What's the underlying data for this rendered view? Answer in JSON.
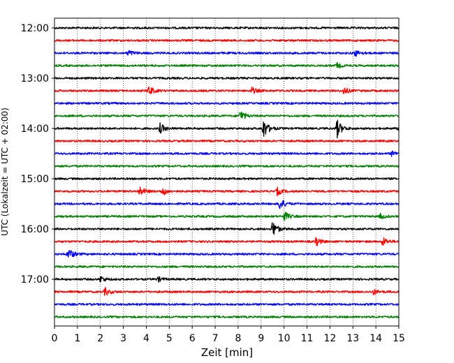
{
  "chart_data": {
    "type": "line",
    "title": "",
    "xlabel": "Zeit  [min]",
    "ylabel": "UTC (Lokalzeit = UTC + 02:00)",
    "xlim": [
      0,
      15
    ],
    "x_ticks": [
      "0",
      "1",
      "2",
      "3",
      "4",
      "5",
      "6",
      "7",
      "8",
      "9",
      "10",
      "11",
      "12",
      "13",
      "14",
      "15"
    ],
    "y_ticks": [
      "12:00",
      "13:00",
      "14:00",
      "15:00",
      "16:00",
      "17:00"
    ],
    "grid": "vertical dotted lines at each minute",
    "row_interval_minutes": 15,
    "series_colors": [
      "#000000",
      "#ff0000",
      "#0000ff",
      "#007f00"
    ],
    "rows": [
      {
        "start": "12:00",
        "color": "#000000",
        "events": []
      },
      {
        "start": "12:15",
        "color": "#ff0000",
        "events": []
      },
      {
        "start": "12:30",
        "color": "#0000ff",
        "events": [
          {
            "t": 3.2,
            "amp": 0.5
          },
          {
            "t": 13.1,
            "amp": 0.5
          }
        ]
      },
      {
        "start": "12:45",
        "color": "#007f00",
        "events": [
          {
            "t": 12.3,
            "amp": 0.4
          }
        ]
      },
      {
        "start": "13:00",
        "color": "#000000",
        "events": []
      },
      {
        "start": "13:15",
        "color": "#ff0000",
        "events": [
          {
            "t": 4.1,
            "amp": 0.8
          },
          {
            "t": 8.6,
            "amp": 0.5
          },
          {
            "t": 12.6,
            "amp": 0.6
          }
        ]
      },
      {
        "start": "13:30",
        "color": "#0000ff",
        "events": []
      },
      {
        "start": "13:45",
        "color": "#007f00",
        "events": [
          {
            "t": 8.1,
            "amp": 0.9
          }
        ]
      },
      {
        "start": "14:00",
        "color": "#000000",
        "events": [
          {
            "t": 4.6,
            "amp": 0.8
          },
          {
            "t": 9.1,
            "amp": 1.6
          },
          {
            "t": 12.3,
            "amp": 1.5
          },
          {
            "t": 15.0,
            "amp": 0.4
          }
        ]
      },
      {
        "start": "14:15",
        "color": "#ff0000",
        "events": []
      },
      {
        "start": "14:30",
        "color": "#0000ff",
        "events": [
          {
            "t": 14.7,
            "amp": 0.4
          }
        ]
      },
      {
        "start": "14:45",
        "color": "#007f00",
        "events": []
      },
      {
        "start": "15:00",
        "color": "#000000",
        "events": []
      },
      {
        "start": "15:15",
        "color": "#ff0000",
        "events": [
          {
            "t": 3.7,
            "amp": 0.8
          },
          {
            "t": 4.7,
            "amp": 0.7
          },
          {
            "t": 9.7,
            "amp": 0.6
          }
        ]
      },
      {
        "start": "15:30",
        "color": "#0000ff",
        "events": [
          {
            "t": 9.8,
            "amp": 1.0
          }
        ]
      },
      {
        "start": "15:45",
        "color": "#007f00",
        "events": [
          {
            "t": 10.0,
            "amp": 0.8
          },
          {
            "t": 14.2,
            "amp": 0.4
          }
        ]
      },
      {
        "start": "16:00",
        "color": "#000000",
        "events": [
          {
            "t": 9.5,
            "amp": 1.3
          }
        ]
      },
      {
        "start": "16:15",
        "color": "#ff0000",
        "events": [
          {
            "t": 11.4,
            "amp": 0.6
          },
          {
            "t": 14.3,
            "amp": 0.7
          }
        ]
      },
      {
        "start": "16:30",
        "color": "#0000ff",
        "events": [
          {
            "t": 0.6,
            "amp": 1.0
          }
        ]
      },
      {
        "start": "16:45",
        "color": "#007f00",
        "events": []
      },
      {
        "start": "17:00",
        "color": "#000000",
        "events": [
          {
            "t": 2.0,
            "amp": 0.5
          },
          {
            "t": 4.5,
            "amp": 0.4
          }
        ]
      },
      {
        "start": "17:15",
        "color": "#ff0000",
        "events": [
          {
            "t": 2.2,
            "amp": 0.6
          },
          {
            "t": 13.9,
            "amp": 0.4
          }
        ]
      },
      {
        "start": "17:30",
        "color": "#0000ff",
        "events": []
      },
      {
        "start": "17:45",
        "color": "#007f00",
        "events": []
      }
    ]
  }
}
